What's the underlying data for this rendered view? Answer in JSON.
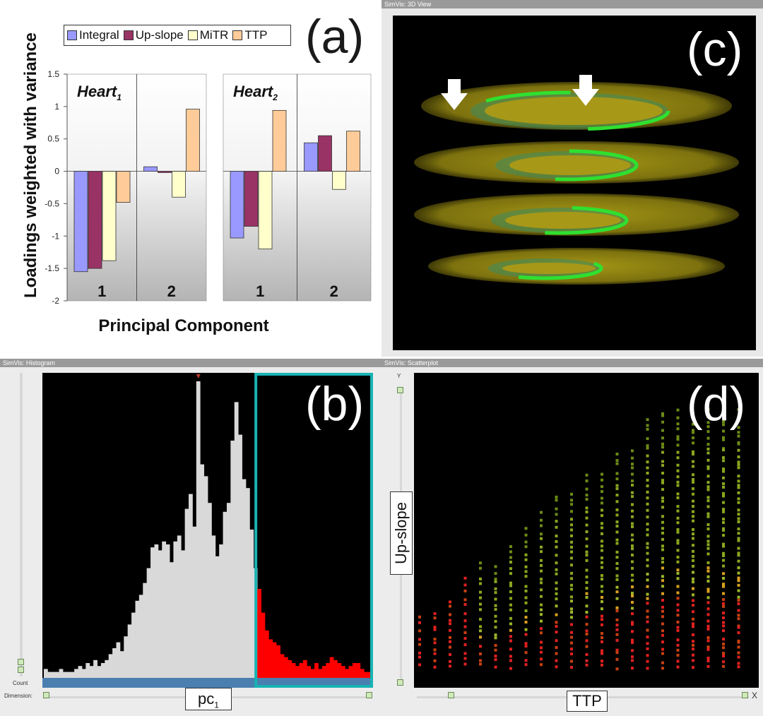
{
  "panels": {
    "a": "(a)",
    "b": "(b)",
    "c": "(c)",
    "d": "(d)"
  },
  "windows": {
    "view3d": "SimVis: 3D View",
    "histogram": "SimVis: Histogram",
    "scatter": "SimVis: Scatterplot"
  },
  "chart_data": [
    {
      "type": "bar",
      "ylabel": "Loadings weighted with variance",
      "xlabel": "Principal Component",
      "ylim": [
        -2,
        1.5
      ],
      "yticks": [
        "1.5",
        "1",
        "0.5",
        "0",
        "-0.5",
        "-1",
        "-1.5",
        "-2"
      ],
      "legend": [
        "Integral",
        "Up-slope",
        "MiTR",
        "TTP"
      ],
      "colors": [
        "#9999ff",
        "#993366",
        "#ffffcc",
        "#ffcc99"
      ],
      "groups": [
        {
          "title": "Heart",
          "sub": "1",
          "components": [
            {
              "label": "1",
              "values": [
                -1.55,
                -1.5,
                -1.38,
                -0.48
              ]
            },
            {
              "label": "2",
              "values": [
                0.07,
                -0.02,
                -0.4,
                0.96
              ]
            }
          ]
        },
        {
          "title": "Heart",
          "sub": "2",
          "components": [
            {
              "label": "1",
              "values": [
                -1.03,
                -0.85,
                -1.2,
                0.94
              ]
            },
            {
              "label": "2",
              "values": [
                0.44,
                0.55,
                -0.28,
                0.62
              ]
            }
          ]
        }
      ]
    },
    {
      "type": "bar",
      "xlabel": "pc",
      "xlabel_sub": "1",
      "ylabel": "Count",
      "dimension_label": "Dimension:",
      "values": [
        3,
        2,
        2,
        2,
        3,
        2,
        2,
        2,
        3,
        4,
        3,
        5,
        4,
        6,
        4,
        5,
        6,
        8,
        10,
        12,
        9,
        14,
        18,
        22,
        26,
        28,
        32,
        37,
        44,
        45,
        43,
        46,
        45,
        39,
        46,
        48,
        43,
        57,
        62,
        51,
        100,
        72,
        68,
        59,
        48,
        41,
        45,
        56,
        59,
        80,
        93,
        82,
        67,
        64,
        50,
        37,
        30,
        22,
        16,
        13,
        12,
        11,
        8,
        7,
        6,
        5,
        4,
        5,
        6,
        4,
        3,
        5,
        3,
        4,
        5,
        7,
        6,
        5,
        4,
        3,
        4,
        5,
        5,
        3,
        2,
        2
      ],
      "selected_from_index": 56,
      "colors": {
        "unselected": "#d9d9d9",
        "selected": "#ff0000",
        "brush": "#19b3b3"
      }
    },
    {
      "type": "scatter",
      "xlabel": "TTP",
      "ylabel": "Up-slope",
      "y_axis_name": "Y",
      "x_axis_name": "X"
    }
  ]
}
